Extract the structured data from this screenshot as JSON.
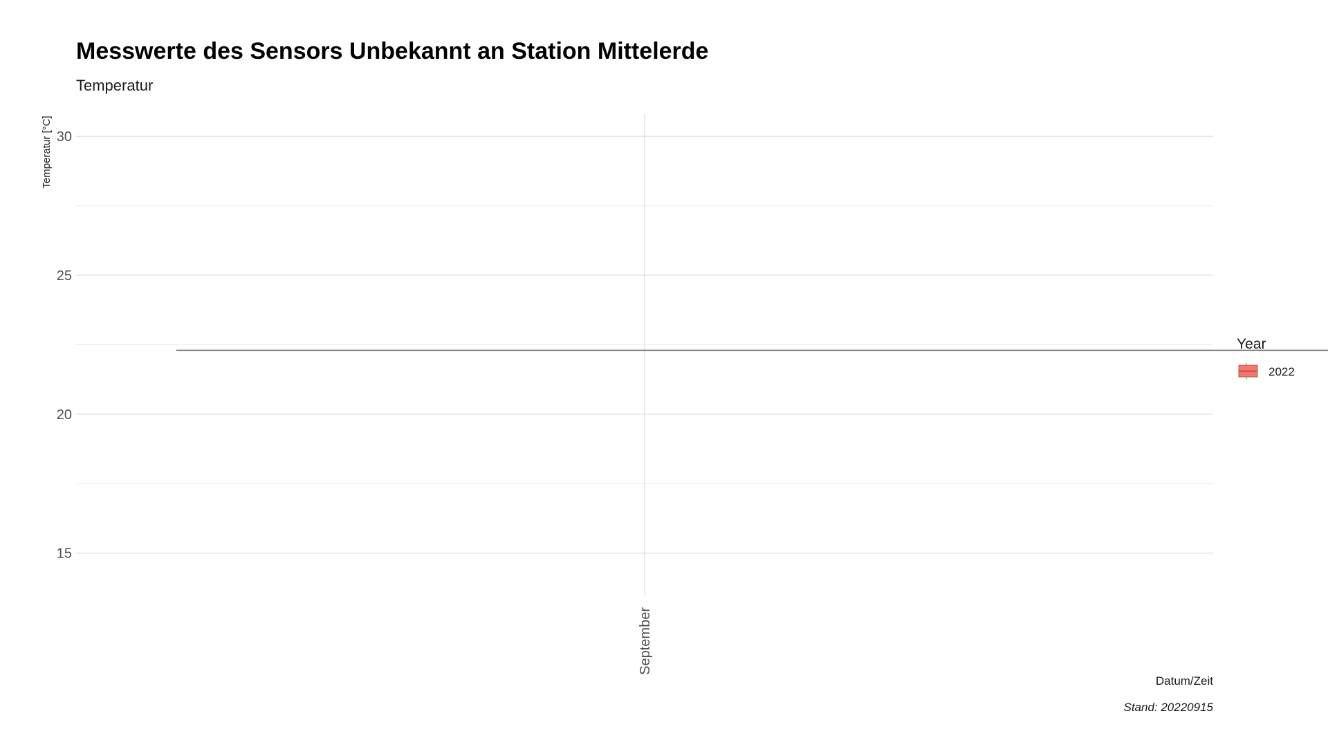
{
  "chart_data": {
    "type": "line",
    "title": "Messwerte des Sensors Unbekannt an Station Mittelerde",
    "subtitle": "Temperatur",
    "xlabel": "Datum/Zeit",
    "ylabel": "Temperatur [°C]",
    "caption": "Stand: 20220915",
    "categories": [
      "September"
    ],
    "yticks": [
      15,
      20,
      25,
      30
    ],
    "ylim": [
      13.5,
      30.8
    ],
    "grid": true,
    "legend": {
      "title": "Year",
      "placement": "right",
      "entries": [
        {
          "label": "2022",
          "color": "#F8766D"
        }
      ]
    },
    "series": [
      {
        "name": "2022",
        "color": "#6f6f6f",
        "x": [
          "September",
          "September"
        ],
        "x_offsets": [
          -0.5,
          0.75
        ],
        "y": [
          22.3,
          22.3
        ]
      }
    ]
  }
}
